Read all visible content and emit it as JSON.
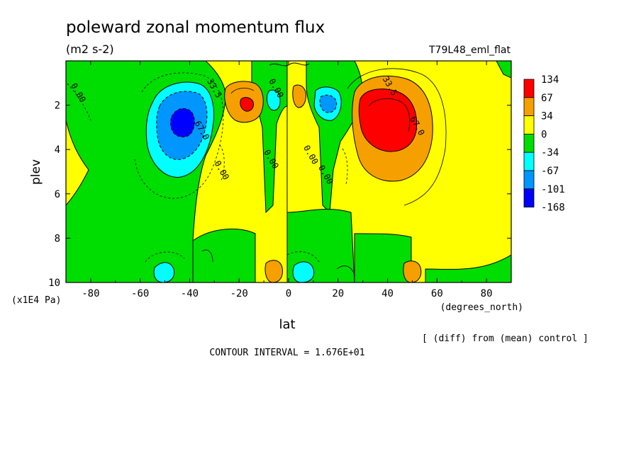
{
  "chart_data": {
    "type": "heatmap",
    "title": "poleward zonal momentum flux",
    "subtitle": "(m2 s-2)",
    "run_label": "T79L48_eml_flat",
    "xlabel": "lat",
    "xunits": "(degrees_north)",
    "ylabel": "plev",
    "yunits": "(x1E4 Pa)",
    "note": "[ (diff) from (mean) control ]",
    "contour_interval": "CONTOUR INTERVAL = 1.676E+01",
    "xlim": [
      -90,
      90
    ],
    "ylim": [
      10,
      0
    ],
    "x_ticks": [
      "-80",
      "-60",
      "-40",
      "-20",
      "0",
      "20",
      "40",
      "60",
      "80"
    ],
    "x_tick_values": [
      -80,
      -60,
      -40,
      -20,
      0,
      20,
      40,
      60,
      80
    ],
    "y_ticks": [
      "2",
      "4",
      "6",
      "8",
      "10"
    ],
    "y_tick_values": [
      2,
      4,
      6,
      8,
      10
    ],
    "colorbar": {
      "labels": [
        "134",
        "67",
        "34",
        "0",
        "-34",
        "-67",
        "-101",
        "-168"
      ],
      "colors": [
        "#ff0000",
        "#f5a000",
        "#ffff00",
        "#00dd00",
        "#00ffff",
        "#0096ff",
        "#0000ff"
      ]
    },
    "contour_labels": [
      {
        "text": "0.00",
        "x": -86,
        "y": 1.5
      },
      {
        "text": "33.5",
        "x": -31,
        "y": 1.3
      },
      {
        "text": "67.0",
        "x": -36,
        "y": 3.2
      },
      {
        "text": "0.00",
        "x": -28,
        "y": 5.0
      },
      {
        "text": "0.00",
        "x": -8,
        "y": 4.5
      },
      {
        "text": "0.00",
        "x": -6,
        "y": 1.3
      },
      {
        "text": "0.00",
        "x": 8,
        "y": 4.3
      },
      {
        "text": "0.00",
        "x": 14,
        "y": 5.2
      },
      {
        "text": "33.5",
        "x": 40,
        "y": 1.2
      },
      {
        "text": "67.0",
        "x": 51,
        "y": 3.0
      }
    ],
    "anomalies": [
      {
        "name": "sh-jet-negative",
        "lat": -41,
        "plev": 2.9,
        "peak": -168
      },
      {
        "name": "sh-subtropical-positive",
        "lat": -16,
        "plev": 2.0,
        "peak": 134
      },
      {
        "name": "nh-subtropical-negative",
        "lat": 16,
        "plev": 2.0,
        "peak": -101
      },
      {
        "name": "nh-jet-positive",
        "lat": 42,
        "plev": 3.0,
        "peak": 134
      },
      {
        "name": "nh-tropical-positive",
        "lat": 5,
        "plev": 2.0,
        "peak": 67
      }
    ]
  }
}
